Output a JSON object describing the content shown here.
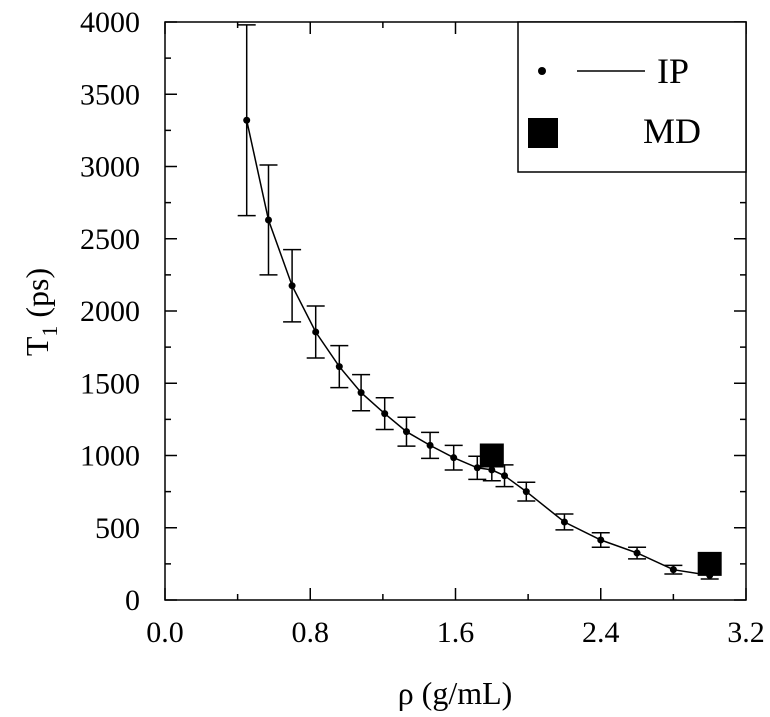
{
  "chart_data": {
    "type": "line",
    "xlabel": "ρ (g/mL)",
    "ylabel_main": "T",
    "ylabel_sub": "1",
    "ylabel_tail": " (ps)",
    "xlim": [
      0.0,
      3.2
    ],
    "ylim": [
      0,
      4000
    ],
    "x_ticks": [
      0.0,
      0.8,
      1.6,
      2.4,
      3.2
    ],
    "x_tick_labels": [
      "0.0",
      "0.8",
      "1.6",
      "2.4",
      "3.2"
    ],
    "x_minor_step": 0.4,
    "y_ticks": [
      0,
      500,
      1000,
      1500,
      2000,
      2500,
      3000,
      3500,
      4000
    ],
    "y_tick_labels": [
      "0",
      "500",
      "1000",
      "1500",
      "2000",
      "2500",
      "3000",
      "3500",
      "4000"
    ],
    "y_minor_step": 250,
    "grid": false,
    "legend_position": "top-right",
    "series": [
      {
        "name": "IP",
        "marker": "dot",
        "line": "solid",
        "x": [
          0.45,
          0.57,
          0.7,
          0.83,
          0.96,
          1.08,
          1.21,
          1.33,
          1.46,
          1.59,
          1.72,
          1.8,
          1.87,
          1.99,
          2.2,
          2.4,
          2.6,
          2.8,
          3.0
        ],
        "y": [
          3320,
          2630,
          2175,
          1855,
          1615,
          1435,
          1290,
          1165,
          1070,
          985,
          915,
          900,
          860,
          750,
          540,
          415,
          325,
          210,
          170
        ],
        "err": [
          660,
          380,
          250,
          180,
          145,
          125,
          110,
          100,
          90,
          85,
          80,
          75,
          75,
          65,
          55,
          50,
          40,
          30,
          25
        ]
      },
      {
        "name": "MD",
        "marker": "square",
        "x": [
          1.8,
          3.0
        ],
        "y": [
          1000,
          250
        ]
      }
    ]
  }
}
